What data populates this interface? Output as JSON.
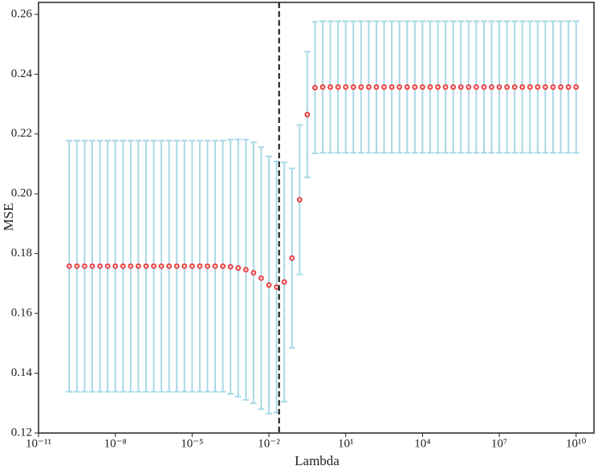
{
  "chart_data": {
    "type": "errorbar",
    "x_label": "Lambda",
    "y_label": "MSE",
    "x": [
      1.585e-10,
      3.162e-10,
      6.31e-10,
      1.259e-09,
      2.512e-09,
      5.012e-09,
      1e-08,
      1.995e-08,
      3.981e-08,
      7.943e-08,
      1.585e-07,
      3.162e-07,
      6.31e-07,
      1.259e-06,
      2.512e-06,
      5.012e-06,
      1e-05,
      1.995e-05,
      3.981e-05,
      7.943e-05,
      0.0001585,
      0.0003162,
      0.000631,
      0.001259,
      0.002512,
      0.005012,
      0.01,
      0.01995,
      0.03981,
      0.07943,
      0.1585,
      0.3162,
      0.631,
      1.259,
      2.512,
      5.012,
      10,
      19.95,
      39.81,
      79.43,
      158.5,
      316.2,
      631,
      1259,
      2512,
      5012,
      10000,
      19950,
      39810,
      79430,
      158500,
      316200,
      631000,
      1259000,
      2512000,
      5012000,
      10000000.0,
      19950000.0,
      39810000.0,
      79430000.0,
      158500000.0,
      316200000.0,
      631000000.0,
      1259000000.0,
      2512000000.0,
      5012000000.0,
      10000000000.0
    ],
    "values": [
      0.1758,
      0.1758,
      0.1758,
      0.1758,
      0.1758,
      0.1758,
      0.1758,
      0.1758,
      0.1758,
      0.1758,
      0.1758,
      0.1758,
      0.1758,
      0.1758,
      0.1758,
      0.1758,
      0.1758,
      0.1758,
      0.1758,
      0.1758,
      0.1758,
      0.1756,
      0.1752,
      0.1746,
      0.1736,
      0.1718,
      0.1695,
      0.1688,
      0.1705,
      0.1785,
      0.198,
      0.2265,
      0.2355,
      0.2357,
      0.2357,
      0.2357,
      0.2357,
      0.2357,
      0.2357,
      0.2357,
      0.2357,
      0.2357,
      0.2357,
      0.2357,
      0.2357,
      0.2357,
      0.2357,
      0.2357,
      0.2357,
      0.2357,
      0.2357,
      0.2357,
      0.2357,
      0.2357,
      0.2357,
      0.2357,
      0.2357,
      0.2357,
      0.2357,
      0.2357,
      0.2357,
      0.2357,
      0.2357,
      0.2357,
      0.2357,
      0.2357,
      0.2357
    ],
    "errors": [
      0.042,
      0.042,
      0.042,
      0.042,
      0.042,
      0.042,
      0.042,
      0.042,
      0.042,
      0.042,
      0.042,
      0.042,
      0.042,
      0.042,
      0.042,
      0.042,
      0.042,
      0.042,
      0.042,
      0.042,
      0.042,
      0.0425,
      0.043,
      0.0435,
      0.0436,
      0.0438,
      0.043,
      0.042,
      0.04,
      0.03,
      0.025,
      0.021,
      0.022,
      0.022,
      0.022,
      0.022,
      0.022,
      0.022,
      0.022,
      0.022,
      0.022,
      0.022,
      0.022,
      0.022,
      0.022,
      0.022,
      0.022,
      0.022,
      0.022,
      0.022,
      0.022,
      0.022,
      0.022,
      0.022,
      0.022,
      0.022,
      0.022,
      0.022,
      0.022,
      0.022,
      0.022,
      0.022,
      0.022,
      0.022,
      0.022,
      0.022,
      0.022
    ],
    "color": "#e8262a",
    "error_color": "#a9d8e6",
    "vline": 0.025,
    "log_x": true,
    "xlim": [
      1e-11,
      50000000000.0
    ],
    "xticks": [
      {
        "value": 1e-11,
        "label": "10⁻¹¹"
      },
      {
        "value": 1e-08,
        "label": "10⁻⁸"
      },
      {
        "value": 1e-05,
        "label": "10⁻⁵"
      },
      {
        "value": 0.01,
        "label": "10⁻²"
      },
      {
        "value": 10,
        "label": "10¹"
      },
      {
        "value": 10000,
        "label": "10⁴"
      },
      {
        "value": 10000000.0,
        "label": "10⁷"
      },
      {
        "value": 10000000000.0,
        "label": "10¹⁰"
      }
    ],
    "ylim": [
      0.12,
      0.264
    ],
    "yticks": [
      0.12,
      0.14,
      0.16,
      0.18,
      {
        "value": 0.2,
        "label": "0.20"
      },
      0.22,
      0.24,
      0.26
    ]
  }
}
